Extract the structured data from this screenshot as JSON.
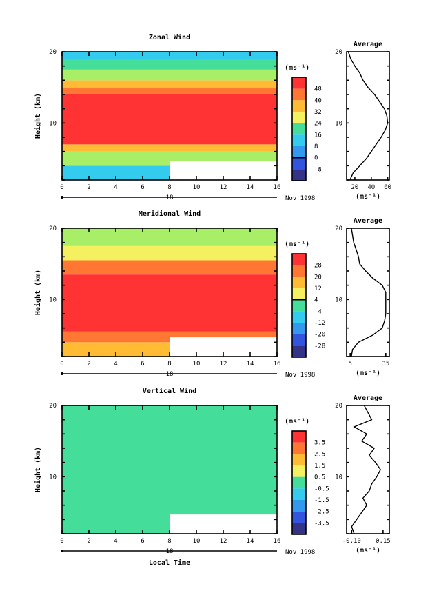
{
  "chart_data": [
    {
      "type": "heatmap",
      "title": "Zonal Wind",
      "xlabel": "",
      "ylabel": "Height (km)",
      "xlim": [
        0,
        16
      ],
      "ylim": [
        2,
        20
      ],
      "x_ticks": [
        0,
        2,
        4,
        6,
        8,
        10,
        12,
        14,
        16
      ],
      "y_ticks": [
        10,
        20
      ],
      "date_label": "18",
      "date_right": "Nov 1998",
      "colorbar": {
        "unit": "(ms⁻¹)",
        "levels": [
          48,
          40,
          32,
          24,
          16,
          8,
          0,
          -8
        ],
        "zero_level": 0
      },
      "average": {
        "title": "Average",
        "xlabel": "(ms⁻¹)",
        "xlim": [
          10,
          62
        ],
        "x_ticks": [
          20,
          40,
          60
        ],
        "y_ticks": [
          10,
          20
        ],
        "profile": [
          [
            14,
            2
          ],
          [
            18,
            3
          ],
          [
            26,
            4
          ],
          [
            34,
            5
          ],
          [
            40,
            6
          ],
          [
            46,
            7
          ],
          [
            52,
            8
          ],
          [
            57,
            9
          ],
          [
            60,
            10
          ],
          [
            59,
            11
          ],
          [
            56,
            12
          ],
          [
            50,
            13
          ],
          [
            44,
            14
          ],
          [
            36,
            15
          ],
          [
            30,
            16
          ],
          [
            26,
            17
          ],
          [
            20,
            18
          ],
          [
            15,
            19
          ],
          [
            12,
            20
          ]
        ]
      },
      "field": {
        "bands": [
          {
            "from": 2,
            "to": 4,
            "value": 10
          },
          {
            "from": 4,
            "to": 6,
            "value": 22
          },
          {
            "from": 6,
            "to": 7,
            "value": 36
          },
          {
            "from": 7,
            "to": 14,
            "value": 50
          },
          {
            "from": 14,
            "to": 15,
            "value": 42
          },
          {
            "from": 15,
            "to": 16,
            "value": 34
          },
          {
            "from": 16,
            "to": 17.5,
            "value": 26
          },
          {
            "from": 17.5,
            "to": 19,
            "value": 18
          },
          {
            "from": 19,
            "to": 20,
            "value": 10
          }
        ],
        "missing_block": {
          "t_start": 8,
          "t_end": 16,
          "h_start": 2,
          "h_end": 4.7
        }
      }
    },
    {
      "type": "heatmap",
      "title": "Meridional Wind",
      "xlabel": "",
      "ylabel": "Height (km)",
      "xlim": [
        0,
        16
      ],
      "ylim": [
        2,
        20
      ],
      "x_ticks": [
        0,
        2,
        4,
        6,
        8,
        10,
        12,
        14,
        16
      ],
      "y_ticks": [
        10,
        20
      ],
      "date_label": "18",
      "date_right": "Nov 1998",
      "colorbar": {
        "unit": "(ms⁻¹)",
        "levels": [
          28,
          20,
          12,
          4,
          -4,
          -12,
          -20,
          -28
        ],
        "zero_level": 4
      },
      "average": {
        "title": "Average",
        "xlabel": "(ms⁻¹)",
        "xlim": [
          2,
          38
        ],
        "x_ticks": [
          5,
          35
        ],
        "y_ticks": [
          10,
          20
        ],
        "profile": [
          [
            6,
            2
          ],
          [
            7,
            3
          ],
          [
            12,
            4
          ],
          [
            24,
            5
          ],
          [
            32,
            6
          ],
          [
            34,
            7
          ],
          [
            35,
            8
          ],
          [
            35,
            9
          ],
          [
            35,
            10
          ],
          [
            35,
            11
          ],
          [
            32,
            12
          ],
          [
            24,
            13
          ],
          [
            18,
            14
          ],
          [
            13,
            15
          ],
          [
            12,
            16
          ],
          [
            10,
            17
          ],
          [
            8,
            18
          ],
          [
            7,
            19
          ],
          [
            6,
            20
          ]
        ]
      },
      "field": {
        "bands": [
          {
            "from": 2,
            "to": 4,
            "value": 14
          },
          {
            "from": 4,
            "to": 5.5,
            "value": 20
          },
          {
            "from": 5.5,
            "to": 6.5,
            "value": 26
          },
          {
            "from": 6.5,
            "to": 12.5,
            "value": 32
          },
          {
            "from": 12.5,
            "to": 13.5,
            "value": 26
          },
          {
            "from": 13.5,
            "to": 15.5,
            "value": 20
          },
          {
            "from": 15.5,
            "to": 17.5,
            "value": 12
          },
          {
            "from": 17.5,
            "to": 20,
            "value": 4
          }
        ],
        "missing_block": {
          "t_start": 8,
          "t_end": 16,
          "h_start": 2,
          "h_end": 4.7
        }
      }
    },
    {
      "type": "heatmap",
      "title": "Vertical Wind",
      "xlabel": "Local Time",
      "ylabel": "Height (km)",
      "xlim": [
        0,
        16
      ],
      "ylim": [
        2,
        20
      ],
      "x_ticks": [
        0,
        2,
        4,
        6,
        8,
        10,
        12,
        14,
        16
      ],
      "y_ticks": [
        10,
        20
      ],
      "date_label": "18",
      "date_right": "Nov 1998",
      "colorbar": {
        "unit": "(ms⁻¹)",
        "levels": [
          3.5,
          2.5,
          1.5,
          0.5,
          -0.5,
          -1.5,
          -2.5,
          -3.5
        ],
        "zero_level": null
      },
      "average": {
        "title": "Average",
        "xlabel": "(ms⁻¹)",
        "xlim": [
          -0.14,
          0.2
        ],
        "x_ticks": [
          -0.1,
          0.15
        ],
        "tick_labels": [
          "-0.10",
          "0.15"
        ],
        "y_ticks": [
          10,
          20
        ],
        "profile": [
          [
            -0.08,
            2
          ],
          [
            -0.1,
            3
          ],
          [
            -0.06,
            4
          ],
          [
            -0.02,
            5
          ],
          [
            0.02,
            6
          ],
          [
            -0.01,
            7
          ],
          [
            0.04,
            8
          ],
          [
            0.06,
            9
          ],
          [
            0.1,
            10
          ],
          [
            0.13,
            11
          ],
          [
            0.09,
            12
          ],
          [
            0.04,
            13
          ],
          [
            0.08,
            14
          ],
          [
            -0.02,
            15
          ],
          [
            0.02,
            16
          ],
          [
            -0.08,
            17
          ],
          [
            0.06,
            18
          ],
          [
            0.03,
            19
          ],
          [
            0.0,
            20
          ]
        ]
      },
      "field": {
        "bands": [
          {
            "from": 2,
            "to": 8,
            "value": -0.6
          },
          {
            "from": 8,
            "to": 14,
            "value": -0.2
          },
          {
            "from": 14,
            "to": 20,
            "value": -0.3
          }
        ],
        "missing_block": {
          "t_start": 8,
          "t_end": 16,
          "h_start": 2,
          "h_end": 4.7
        }
      }
    }
  ]
}
